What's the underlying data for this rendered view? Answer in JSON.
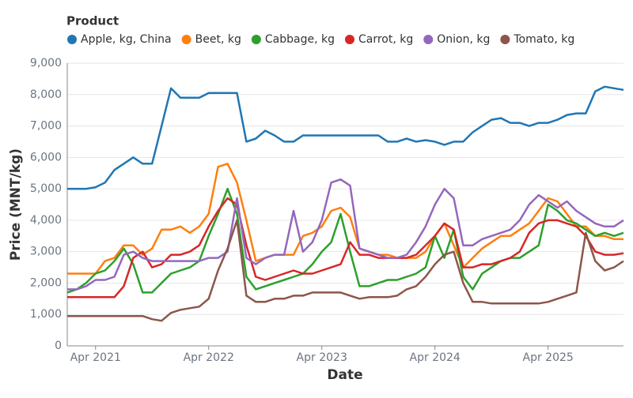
{
  "chart_data": {
    "type": "line",
    "legend_title": "Product",
    "x_label": "Date",
    "y_label": "Price (MNT/kg)",
    "x": [
      "2021-01",
      "2021-02",
      "2021-03",
      "2021-04",
      "2021-05",
      "2021-06",
      "2021-07",
      "2021-08",
      "2021-09",
      "2021-10",
      "2021-11",
      "2021-12",
      "2022-01",
      "2022-02",
      "2022-03",
      "2022-04",
      "2022-05",
      "2022-06",
      "2022-07",
      "2022-08",
      "2022-09",
      "2022-10",
      "2022-11",
      "2022-12",
      "2023-01",
      "2023-02",
      "2023-03",
      "2023-04",
      "2023-05",
      "2023-06",
      "2023-07",
      "2023-08",
      "2023-09",
      "2023-10",
      "2023-11",
      "2023-12",
      "2024-01",
      "2024-02",
      "2024-03",
      "2024-04",
      "2024-05",
      "2024-06",
      "2024-07",
      "2024-08",
      "2024-09",
      "2024-10",
      "2024-11",
      "2024-12",
      "2025-01",
      "2025-02",
      "2025-03",
      "2025-04",
      "2025-05",
      "2025-06",
      "2025-07",
      "2025-08",
      "2025-09",
      "2025-10",
      "2025-11",
      "2025-12"
    ],
    "xlim": [
      "2021-01",
      "2025-12"
    ],
    "xticks": [
      {
        "value": "2021-04",
        "label": "Apr 2021"
      },
      {
        "value": "2022-04",
        "label": "Apr 2022"
      },
      {
        "value": "2023-04",
        "label": "Apr 2023"
      },
      {
        "value": "2024-04",
        "label": "Apr 2024"
      },
      {
        "value": "2025-04",
        "label": "Apr 2025"
      }
    ],
    "ylim": [
      0,
      9000
    ],
    "yticks": [
      0,
      {
        "value": 1000,
        "label": "1,000"
      },
      {
        "value": 2000,
        "label": "2,000"
      },
      {
        "value": 3000,
        "label": "3,000"
      },
      {
        "value": 4000,
        "label": "4,000"
      },
      {
        "value": 5000,
        "label": "5,000"
      },
      {
        "value": 6000,
        "label": "6,000"
      },
      {
        "value": 7000,
        "label": "7,000"
      },
      {
        "value": 8000,
        "label": "8,000"
      },
      {
        "value": 9000,
        "label": "9,000"
      }
    ],
    "grid": true,
    "series": [
      {
        "name": "Apple, kg, China",
        "color": "#1f77b4",
        "values": [
          5000,
          5000,
          5000,
          5050,
          5200,
          5600,
          5800,
          6000,
          5800,
          5800,
          7000,
          8200,
          7900,
          7900,
          7900,
          8050,
          8050,
          8050,
          8050,
          6500,
          6600,
          6850,
          6700,
          6500,
          6500,
          6700,
          6700,
          6700,
          6700,
          6700,
          6700,
          6700,
          6700,
          6700,
          6500,
          6500,
          6600,
          6500,
          6550,
          6500,
          6400,
          6500,
          6500,
          6800,
          7000,
          7200,
          7250,
          7100,
          7100,
          7000,
          7100,
          7100,
          7200,
          7350,
          7400,
          7400,
          8100,
          8250,
          8200,
          8150
        ]
      },
      {
        "name": "Beet, kg",
        "color": "#ff7f0e",
        "values": [
          2300,
          2300,
          2300,
          2300,
          2700,
          2800,
          3200,
          3200,
          2900,
          3100,
          3700,
          3700,
          3800,
          3600,
          3800,
          4200,
          5700,
          5800,
          5200,
          4000,
          2700,
          2800,
          2900,
          2900,
          2900,
          3500,
          3600,
          3800,
          4300,
          4400,
          4100,
          3100,
          3000,
          2900,
          2900,
          2800,
          2800,
          2800,
          3000,
          3500,
          3900,
          3200,
          2500,
          2800,
          3100,
          3300,
          3500,
          3500,
          3700,
          3900,
          4300,
          4700,
          4600,
          4200,
          3800,
          3800,
          3500,
          3500,
          3400,
          3400
        ]
      },
      {
        "name": "Cabbage, kg",
        "color": "#2ca02c",
        "values": [
          1700,
          1800,
          2000,
          2300,
          2400,
          2700,
          3100,
          2600,
          1700,
          1700,
          2000,
          2300,
          2400,
          2500,
          2700,
          3500,
          4200,
          5000,
          4200,
          2200,
          1800,
          1900,
          2000,
          2100,
          2200,
          2300,
          2600,
          3000,
          3300,
          4200,
          3000,
          1900,
          1900,
          2000,
          2100,
          2100,
          2200,
          2300,
          2500,
          3500,
          2800,
          3700,
          2200,
          1800,
          2300,
          2500,
          2700,
          2800,
          2800,
          3000,
          3200,
          4500,
          4300,
          4000,
          3900,
          3700,
          3500,
          3600,
          3500,
          3600
        ]
      },
      {
        "name": "Carrot, kg",
        "color": "#d62728",
        "values": [
          1550,
          1550,
          1550,
          1550,
          1550,
          1550,
          1900,
          2800,
          3000,
          2500,
          2600,
          2900,
          2900,
          3000,
          3200,
          3800,
          4300,
          4700,
          4500,
          3200,
          2200,
          2100,
          2200,
          2300,
          2400,
          2300,
          2300,
          2400,
          2500,
          2600,
          3300,
          2900,
          2900,
          2800,
          2800,
          2800,
          2800,
          2900,
          3200,
          3500,
          3900,
          3700,
          2500,
          2500,
          2600,
          2600,
          2700,
          2800,
          3000,
          3600,
          3900,
          4000,
          4000,
          3900,
          3800,
          3500,
          3000,
          2900,
          2900,
          2950
        ]
      },
      {
        "name": "Onion, kg",
        "color": "#9467bd",
        "values": [
          1800,
          1800,
          1900,
          2100,
          2100,
          2200,
          2900,
          3000,
          2800,
          2700,
          2700,
          2700,
          2700,
          2700,
          2700,
          2800,
          2800,
          3000,
          4700,
          2800,
          2600,
          2800,
          2900,
          2900,
          4300,
          3000,
          3300,
          4000,
          5200,
          5300,
          5100,
          3100,
          3000,
          2900,
          2800,
          2800,
          2900,
          3300,
          3800,
          4500,
          5000,
          4700,
          3200,
          3200,
          3400,
          3500,
          3600,
          3700,
          4000,
          4500,
          4800,
          4600,
          4400,
          4600,
          4300,
          4100,
          3900,
          3800,
          3800,
          4000
        ]
      },
      {
        "name": "Tomato, kg",
        "color": "#8c564b",
        "values": [
          950,
          950,
          950,
          950,
          950,
          950,
          950,
          950,
          950,
          850,
          800,
          1050,
          1150,
          1200,
          1250,
          1500,
          2400,
          3100,
          4000,
          1600,
          1400,
          1400,
          1500,
          1500,
          1600,
          1600,
          1700,
          1700,
          1700,
          1700,
          1600,
          1500,
          1550,
          1550,
          1550,
          1600,
          1800,
          1900,
          2200,
          2600,
          2900,
          3000,
          2000,
          1400,
          1400,
          1350,
          1350,
          1350,
          1350,
          1350,
          1350,
          1400,
          1500,
          1600,
          1700,
          3600,
          2700,
          2400,
          2500,
          2700
        ]
      }
    ]
  }
}
